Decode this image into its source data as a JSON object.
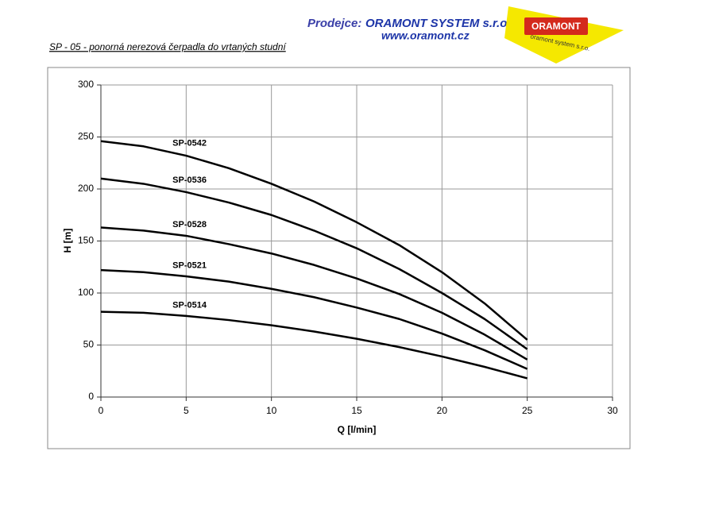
{
  "header": {
    "seller_label": "Prodejce:",
    "company": "ORAMONT SYSTEM s.r.o.",
    "website": "www.oramont.cz",
    "logo_text": "ORAMONT",
    "logo_subtext": "oramont system s.r.o.",
    "subtitle": "SP - 05 - ponorná nerezová čerpadla do vrtaných studní"
  },
  "chart_data": {
    "type": "line",
    "xlabel": "Q [l/min]",
    "ylabel": "H [m]",
    "x": [
      0,
      2.5,
      5,
      7.5,
      10,
      12.5,
      15,
      17.5,
      20,
      22.5,
      25
    ],
    "series": [
      {
        "name": "SP-0542",
        "color": "#000000",
        "values": [
          246,
          241,
          232,
          220,
          205,
          188,
          168,
          146,
          120,
          90,
          55
        ]
      },
      {
        "name": "SP-0536",
        "color": "#000000",
        "values": [
          210,
          205,
          197,
          187,
          175,
          160,
          143,
          123,
          100,
          75,
          46
        ]
      },
      {
        "name": "SP-0528",
        "color": "#000000",
        "values": [
          163,
          160,
          155,
          147,
          138,
          127,
          114,
          99,
          81,
          60,
          36
        ]
      },
      {
        "name": "SP-0521",
        "color": "#000000",
        "values": [
          122,
          120,
          116,
          111,
          104,
          96,
          86,
          75,
          61,
          45,
          27
        ]
      },
      {
        "name": "SP-0514",
        "color": "#000000",
        "values": [
          82,
          81,
          78,
          74,
          69,
          63,
          56,
          48,
          39,
          29,
          18
        ]
      }
    ],
    "xlim": [
      0,
      30
    ],
    "xticks": [
      0,
      5,
      10,
      15,
      20,
      25,
      30
    ],
    "ylim": [
      0,
      300
    ],
    "yticks": [
      0,
      50,
      100,
      150,
      200,
      250,
      300
    ],
    "grid": true
  }
}
